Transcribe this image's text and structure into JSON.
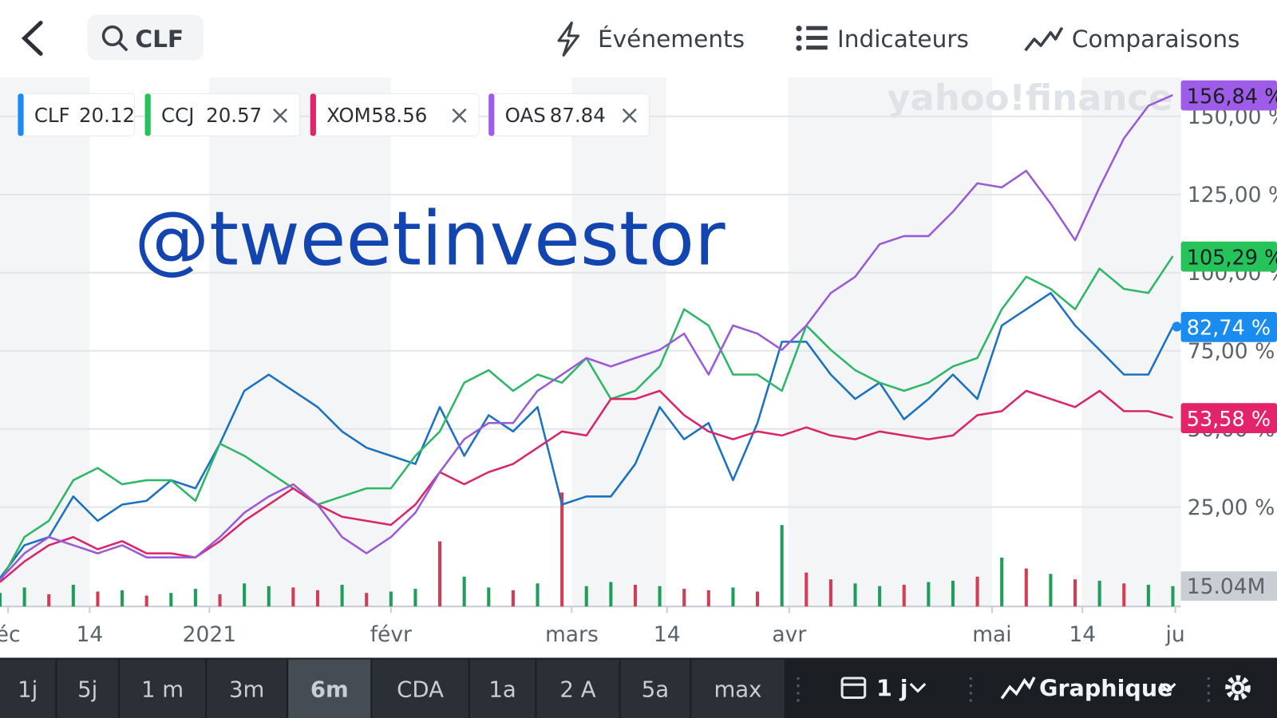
{
  "header": {
    "search": "CLF",
    "buttons": [
      "Événements",
      "Indicateurs",
      "Comparaisons"
    ]
  },
  "watermark": "yahoo!finance",
  "overlay_text": "@tweetinvestor",
  "chart_data": {
    "type": "line",
    "series": [
      {
        "name": "CLF",
        "price": 20.12,
        "color": "#1b72c0",
        "tag_color": "#1a8cf0",
        "end_label": "82,74 %",
        "values": [
          2.3,
          12.8,
          15.4,
          28.4,
          20.6,
          25.8,
          27,
          33.6,
          31,
          45.3,
          62.2,
          67.4,
          62.2,
          57,
          49.2,
          44,
          41.4,
          38.8,
          57,
          41.4,
          54.4,
          49.2,
          57,
          25.8,
          28.4,
          28.4,
          38.8,
          57,
          46.7,
          51.9,
          33.6,
          51.9,
          77.9,
          77.9,
          67.4,
          59.6,
          64.8,
          53.1,
          59.6,
          67.4,
          59.6,
          83.1,
          88.3,
          93.5,
          83.1,
          75.3,
          67.4,
          67.4,
          82.74
        ]
      },
      {
        "name": "CCJ",
        "price": 20.57,
        "color": "#2fb768",
        "tag_color": "#26c35b",
        "end_label": "105,29 %",
        "values": [
          1,
          15.4,
          20.6,
          33.6,
          37.5,
          32.3,
          33.6,
          33.6,
          27,
          45.3,
          41.4,
          36.2,
          31,
          25.8,
          28.4,
          31,
          31,
          41.4,
          49.2,
          64.8,
          68.8,
          62.2,
          67.4,
          64.8,
          72.7,
          59.6,
          62.2,
          70,
          88.3,
          83.1,
          67.4,
          67.4,
          62.2,
          83.1,
          75.3,
          68.8,
          64.8,
          62.2,
          64.8,
          70,
          72.7,
          88.3,
          98.7,
          94.8,
          88.3,
          101.3,
          94.8,
          93.5,
          105.29
        ]
      },
      {
        "name": "XOM",
        "price": 58.56,
        "color": "#d9266a",
        "tag_color": "#e3246b",
        "end_label": "53,58 %",
        "values": [
          1,
          7.6,
          12.8,
          15.4,
          11.5,
          14.1,
          10.2,
          10.2,
          8.9,
          14.1,
          20.6,
          25.8,
          31,
          25.8,
          21.9,
          20.6,
          19.3,
          25.8,
          36.2,
          32.3,
          36.2,
          38.8,
          44,
          49.2,
          47.9,
          59.6,
          59.6,
          62.2,
          54.4,
          49.2,
          46.7,
          49.2,
          47.9,
          50.5,
          47.9,
          46.7,
          49.2,
          47.9,
          46.7,
          47.9,
          54.4,
          55.7,
          62.2,
          59.6,
          57,
          62.2,
          55.7,
          55.7,
          53.58
        ]
      },
      {
        "name": "OAS",
        "price": 87.84,
        "color": "#9b5ad6",
        "tag_color": "#9f5ce8",
        "end_label": "156,84 %",
        "values": [
          1.8,
          10.2,
          15.4,
          12.8,
          10.2,
          12.8,
          8.9,
          8.9,
          8.9,
          15.4,
          23.2,
          28.4,
          32.3,
          25.8,
          15.4,
          10.2,
          15.4,
          23.2,
          36.2,
          46.7,
          51.9,
          51.9,
          62.2,
          67.4,
          72.7,
          70,
          72.7,
          75.3,
          80.5,
          67.4,
          83.1,
          80.5,
          75.3,
          83.1,
          93.5,
          98.7,
          109.1,
          111.7,
          111.7,
          119.5,
          128.6,
          127.3,
          132.6,
          122.1,
          110.4,
          127.3,
          143,
          153.4,
          156.84
        ]
      }
    ],
    "ylim": [
      -6.8,
      162.5
    ],
    "yticks": [
      {
        "value": 25,
        "label": "25,00 %"
      },
      {
        "value": 50,
        "label": "50,00 %"
      },
      {
        "value": 75,
        "label": "75,00 %"
      },
      {
        "value": 100,
        "label": "100,00 %"
      },
      {
        "value": 125,
        "label": "125,00 %"
      },
      {
        "value": 150,
        "label": "150,00 %"
      }
    ],
    "xlim": [
      0,
      48.33
    ],
    "xticks": [
      {
        "value": 0.33,
        "label": "éc"
      },
      {
        "value": 3.67,
        "label": "14"
      },
      {
        "value": 8.57,
        "label": "2021"
      },
      {
        "value": 16,
        "label": "févr"
      },
      {
        "value": 23.4,
        "label": "mars"
      },
      {
        "value": 27.3,
        "label": "14"
      },
      {
        "value": 32.3,
        "label": "avr"
      },
      {
        "value": 40.6,
        "label": "mai"
      },
      {
        "value": 44.3,
        "label": "14"
      },
      {
        "value": 48.1,
        "label": "ju"
      }
    ],
    "grid": true,
    "volume": {
      "ylim": [
        0,
        90
      ],
      "ticks": [
        {
          "value": 15.04,
          "label": "15.04M"
        }
      ],
      "values": [
        10,
        14,
        9,
        16,
        11,
        12,
        8,
        10,
        13,
        9,
        17,
        15,
        14,
        12,
        16,
        10,
        11,
        13,
        48,
        22,
        14,
        12,
        17,
        84,
        15,
        18,
        16,
        15,
        13,
        12,
        14,
        11,
        60,
        25,
        20,
        17,
        15,
        16,
        18,
        19,
        22,
        36,
        28,
        24,
        20,
        19,
        17,
        16,
        15
      ],
      "colors": [
        "#1e9e5a",
        "#1e9e5a",
        "#d23c55",
        "#1e9e5a",
        "#d23c55",
        "#1e9e5a",
        "#d23c55",
        "#1e9e5a",
        "#1e9e5a",
        "#d23c55",
        "#1e9e5a",
        "#1e9e5a",
        "#d23c55",
        "#d23c55",
        "#1e9e5a",
        "#d23c55",
        "#1e9e5a",
        "#1e9e5a",
        "#d23c55",
        "#1e9e5a",
        "#1e9e5a",
        "#d23c55",
        "#1e9e5a",
        "#d23c55",
        "#1e9e5a",
        "#1e9e5a",
        "#d23c55",
        "#1e9e5a",
        "#d23c55",
        "#d23c55",
        "#1e9e5a",
        "#d23c55",
        "#1e9e5a",
        "#d23c55",
        "#d23c55",
        "#1e9e5a",
        "#1e9e5a",
        "#d23c55",
        "#1e9e5a",
        "#1e9e5a",
        "#d23c55",
        "#1e9e5a",
        "#d23c55",
        "#1e9e5a",
        "#d23c55",
        "#1e9e5a",
        "#d23c55",
        "#1e9e5a",
        "#1e9e5a"
      ]
    }
  },
  "footer": {
    "ranges": [
      "1j",
      "5j",
      "1 m",
      "3m",
      "6m",
      "CDA",
      "1a",
      "2 A",
      "5a",
      "max"
    ],
    "selected": "6m",
    "interval": "1 j",
    "chart_type": "Graphique"
  }
}
